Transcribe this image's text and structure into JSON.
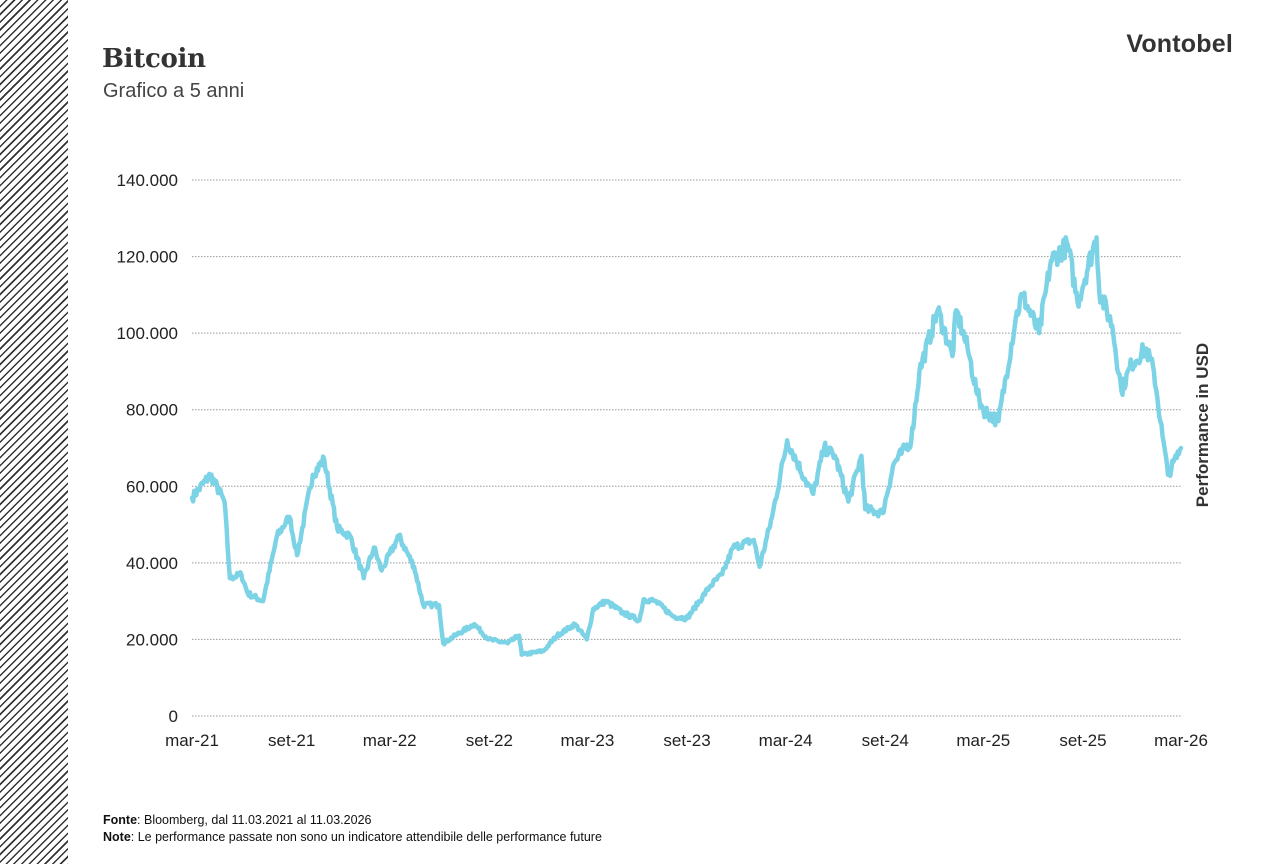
{
  "header": {
    "title": "Bitcoin",
    "subtitle": "Grafico a 5 anni",
    "logo": "Vontobel"
  },
  "footer": {
    "source_label": "Fonte",
    "source_text": ": Bloomberg, dal 11.03.2021 al 11.03.2026",
    "note_label": "Note",
    "note_text": ": Le performance passate non sono un indicatore attendibile delle performance future"
  },
  "colors": {
    "line": "#7dd3e6",
    "grid": "#999999",
    "text": "#222222"
  },
  "chart_data": {
    "type": "line",
    "title": "Bitcoin",
    "subtitle": "Grafico a 5 anni",
    "ylabel": "Performance in USD",
    "ylim": [
      0,
      140000
    ],
    "yticks": [
      0,
      20000,
      40000,
      60000,
      80000,
      100000,
      120000,
      140000
    ],
    "ytick_labels": [
      "0",
      "20.000",
      "40.000",
      "60.000",
      "80.000",
      "100.000",
      "120.000",
      "140.000"
    ],
    "xlim": [
      "2021-03-11",
      "2026-03-11"
    ],
    "xtick_labels": [
      "mar-21",
      "set-21",
      "mar-22",
      "set-22",
      "mar-23",
      "set-23",
      "mar-24",
      "set-24",
      "mar-25",
      "set-25",
      "mar-26"
    ],
    "xtick_dates": [
      "2021-03-11",
      "2021-09-11",
      "2022-03-11",
      "2022-09-11",
      "2023-03-11",
      "2023-09-11",
      "2024-03-11",
      "2024-09-11",
      "2025-03-11",
      "2025-09-11",
      "2026-03-11"
    ],
    "grid": true,
    "series": [
      {
        "name": "",
        "x": [
          "2021-03-11",
          "2021-04-14",
          "2021-05-10",
          "2021-05-20",
          "2021-06-10",
          "2021-06-22",
          "2021-07-20",
          "2021-08-15",
          "2021-09-07",
          "2021-09-21",
          "2021-10-20",
          "2021-11-10",
          "2021-12-04",
          "2021-12-28",
          "2022-01-22",
          "2022-02-10",
          "2022-02-24",
          "2022-03-28",
          "2022-04-25",
          "2022-05-12",
          "2022-06-10",
          "2022-06-18",
          "2022-07-10",
          "2022-08-14",
          "2022-09-10",
          "2022-10-15",
          "2022-11-05",
          "2022-11-10",
          "2022-12-20",
          "2023-01-14",
          "2023-02-16",
          "2023-03-10",
          "2023-03-22",
          "2023-04-14",
          "2023-05-15",
          "2023-06-15",
          "2023-06-23",
          "2023-07-14",
          "2023-08-17",
          "2023-09-11",
          "2023-10-24",
          "2023-11-15",
          "2023-12-05",
          "2024-01-12",
          "2024-01-23",
          "2024-02-15",
          "2024-03-14",
          "2024-04-15",
          "2024-05-01",
          "2024-05-21",
          "2024-06-10",
          "2024-07-05",
          "2024-07-29",
          "2024-08-05",
          "2024-09-06",
          "2024-09-27",
          "2024-10-29",
          "2024-11-13",
          "2024-12-17",
          "2025-01-13",
          "2025-01-20",
          "2025-02-10",
          "2025-02-28",
          "2025-03-11",
          "2025-04-08",
          "2025-05-10",
          "2025-05-22",
          "2025-06-22",
          "2025-07-14",
          "2025-08-14",
          "2025-09-01",
          "2025-10-06",
          "2025-10-11",
          "2025-11-04",
          "2025-11-21",
          "2025-12-10",
          "2026-01-05",
          "2026-01-20",
          "2026-02-05",
          "2026-02-15",
          "2026-03-11"
        ],
        "values": [
          57000,
          63000,
          56000,
          36000,
          37000,
          32000,
          30000,
          47000,
          52000,
          42000,
          63000,
          67000,
          49000,
          47000,
          36000,
          44000,
          38000,
          47000,
          39000,
          29000,
          29000,
          19000,
          21000,
          24000,
          20000,
          19000,
          21000,
          16000,
          17000,
          21000,
          24000,
          20000,
          28000,
          30000,
          27000,
          25000,
          30500,
          30000,
          26000,
          25500,
          34000,
          37000,
          44000,
          46000,
          39000,
          52000,
          72000,
          62000,
          58000,
          70000,
          68000,
          56000,
          68000,
          54000,
          53000,
          66000,
          72000,
          90000,
          106000,
          94000,
          106000,
          96000,
          84000,
          80000,
          77000,
          104000,
          110000,
          100000,
          119000,
          123000,
          108000,
          125000,
          111000,
          102000,
          85000,
          92000,
          96000,
          90000,
          73000,
          63000,
          70000
        ]
      }
    ]
  }
}
